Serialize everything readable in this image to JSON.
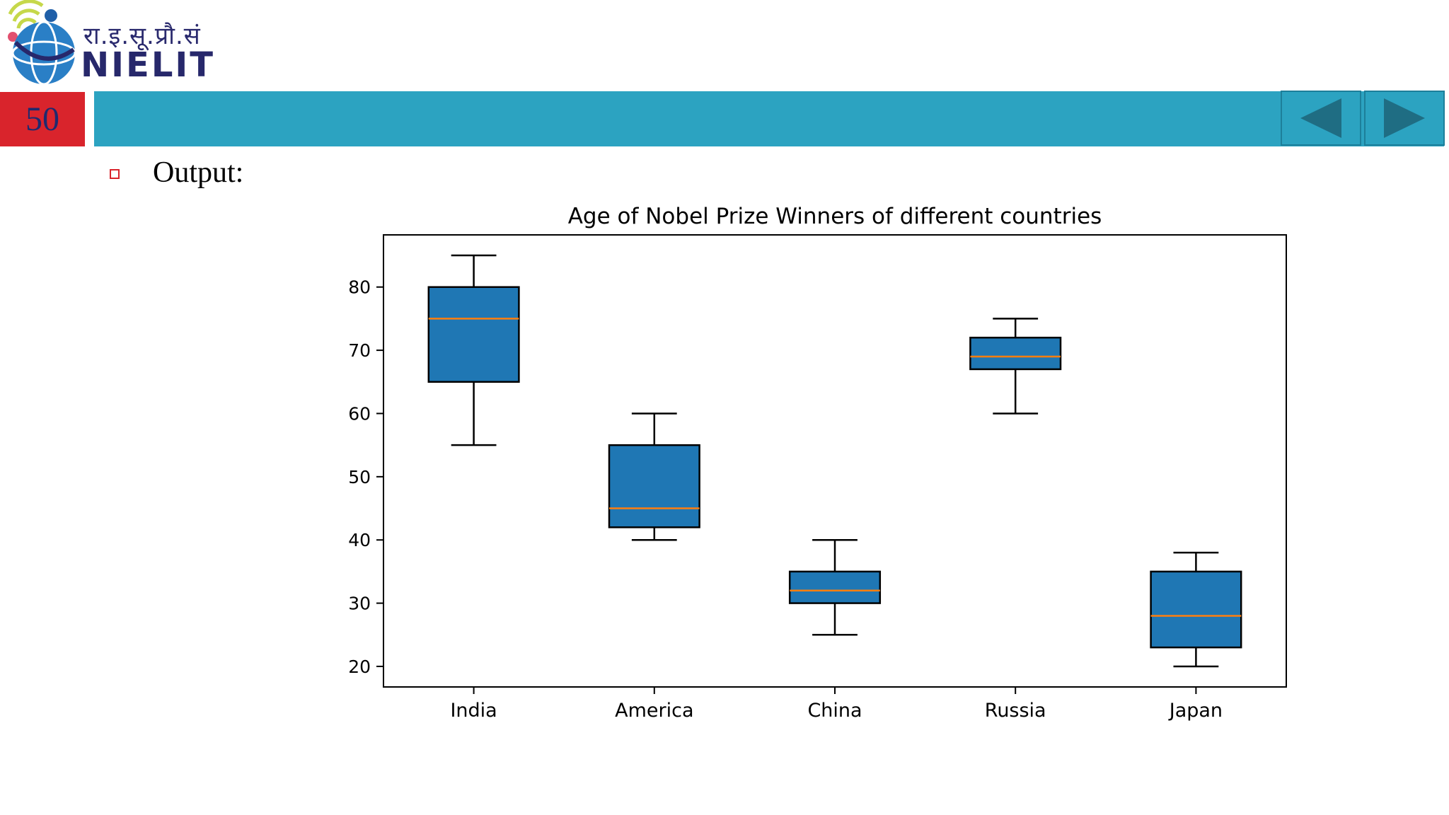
{
  "logo": {
    "hindi_text": "रा.इ.सू.प्रौ.सं",
    "english_text": "NIELIT"
  },
  "slide": {
    "number": "50"
  },
  "nav": {
    "prev_icon": "triangle-left-icon",
    "next_icon": "triangle-right-icon",
    "color": "#2ca3c1"
  },
  "content": {
    "bullet_label": "Output:"
  },
  "chart_data": {
    "type": "boxplot",
    "title": "Age of Nobel Prize Winners of different countries",
    "xlabel": "",
    "ylabel": "",
    "categories": [
      "India",
      "America",
      "China",
      "Russia",
      "Japan"
    ],
    "boxes": [
      {
        "name": "India",
        "whisker_low": 55,
        "q1": 65,
        "median": 75,
        "q3": 80,
        "whisker_high": 85
      },
      {
        "name": "America",
        "whisker_low": 40,
        "q1": 42,
        "median": 45,
        "q3": 55,
        "whisker_high": 60
      },
      {
        "name": "China",
        "whisker_low": 25,
        "q1": 30,
        "median": 32,
        "q3": 35,
        "whisker_high": 40
      },
      {
        "name": "Russia",
        "whisker_low": 60,
        "q1": 67,
        "median": 69,
        "q3": 72,
        "whisker_high": 75
      },
      {
        "name": "Japan",
        "whisker_low": 20,
        "q1": 23,
        "median": 28,
        "q3": 35,
        "whisker_high": 38
      }
    ],
    "yticks": [
      20,
      30,
      40,
      50,
      60,
      70,
      80
    ],
    "ylim": [
      16.75,
      88.25
    ],
    "box_color": "#1f77b4",
    "median_color": "#ff7f0e",
    "grid": false
  }
}
